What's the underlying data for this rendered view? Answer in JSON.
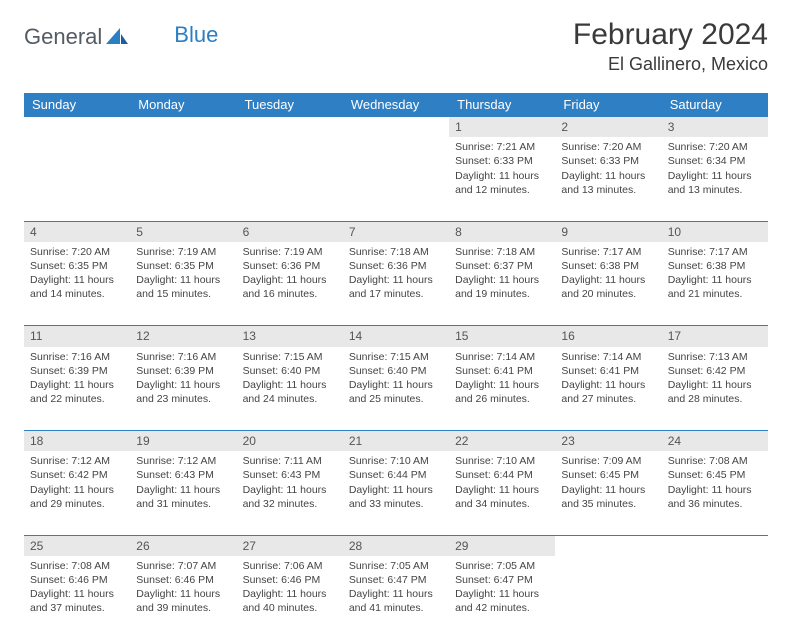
{
  "brand": {
    "part1": "General",
    "part2": "Blue"
  },
  "title": "February 2024",
  "location": "El Gallinero, Mexico",
  "colors": {
    "header_bg": "#2f7fc5",
    "header_text": "#ffffff",
    "daynum_bg": "#e8e8e8",
    "row_border": "#2f7fc5",
    "body_text": "#444444",
    "brand_gray": "#555b66",
    "brand_blue": "#2a7ec4",
    "page_bg": "#ffffff"
  },
  "typography": {
    "title_fontsize": 30,
    "location_fontsize": 18,
    "dayheader_fontsize": 13,
    "daynum_fontsize": 12,
    "cell_fontsize": 10.5
  },
  "day_headers": [
    "Sunday",
    "Monday",
    "Tuesday",
    "Wednesday",
    "Thursday",
    "Friday",
    "Saturday"
  ],
  "weeks": [
    {
      "nums": [
        "",
        "",
        "",
        "",
        "1",
        "2",
        "3"
      ],
      "cells": [
        null,
        null,
        null,
        null,
        {
          "sunrise": "Sunrise: 7:21 AM",
          "sunset": "Sunset: 6:33 PM",
          "day1": "Daylight: 11 hours",
          "day2": "and 12 minutes."
        },
        {
          "sunrise": "Sunrise: 7:20 AM",
          "sunset": "Sunset: 6:33 PM",
          "day1": "Daylight: 11 hours",
          "day2": "and 13 minutes."
        },
        {
          "sunrise": "Sunrise: 7:20 AM",
          "sunset": "Sunset: 6:34 PM",
          "day1": "Daylight: 11 hours",
          "day2": "and 13 minutes."
        }
      ]
    },
    {
      "nums": [
        "4",
        "5",
        "6",
        "7",
        "8",
        "9",
        "10"
      ],
      "cells": [
        {
          "sunrise": "Sunrise: 7:20 AM",
          "sunset": "Sunset: 6:35 PM",
          "day1": "Daylight: 11 hours",
          "day2": "and 14 minutes."
        },
        {
          "sunrise": "Sunrise: 7:19 AM",
          "sunset": "Sunset: 6:35 PM",
          "day1": "Daylight: 11 hours",
          "day2": "and 15 minutes."
        },
        {
          "sunrise": "Sunrise: 7:19 AM",
          "sunset": "Sunset: 6:36 PM",
          "day1": "Daylight: 11 hours",
          "day2": "and 16 minutes."
        },
        {
          "sunrise": "Sunrise: 7:18 AM",
          "sunset": "Sunset: 6:36 PM",
          "day1": "Daylight: 11 hours",
          "day2": "and 17 minutes."
        },
        {
          "sunrise": "Sunrise: 7:18 AM",
          "sunset": "Sunset: 6:37 PM",
          "day1": "Daylight: 11 hours",
          "day2": "and 19 minutes."
        },
        {
          "sunrise": "Sunrise: 7:17 AM",
          "sunset": "Sunset: 6:38 PM",
          "day1": "Daylight: 11 hours",
          "day2": "and 20 minutes."
        },
        {
          "sunrise": "Sunrise: 7:17 AM",
          "sunset": "Sunset: 6:38 PM",
          "day1": "Daylight: 11 hours",
          "day2": "and 21 minutes."
        }
      ]
    },
    {
      "nums": [
        "11",
        "12",
        "13",
        "14",
        "15",
        "16",
        "17"
      ],
      "cells": [
        {
          "sunrise": "Sunrise: 7:16 AM",
          "sunset": "Sunset: 6:39 PM",
          "day1": "Daylight: 11 hours",
          "day2": "and 22 minutes."
        },
        {
          "sunrise": "Sunrise: 7:16 AM",
          "sunset": "Sunset: 6:39 PM",
          "day1": "Daylight: 11 hours",
          "day2": "and 23 minutes."
        },
        {
          "sunrise": "Sunrise: 7:15 AM",
          "sunset": "Sunset: 6:40 PM",
          "day1": "Daylight: 11 hours",
          "day2": "and 24 minutes."
        },
        {
          "sunrise": "Sunrise: 7:15 AM",
          "sunset": "Sunset: 6:40 PM",
          "day1": "Daylight: 11 hours",
          "day2": "and 25 minutes."
        },
        {
          "sunrise": "Sunrise: 7:14 AM",
          "sunset": "Sunset: 6:41 PM",
          "day1": "Daylight: 11 hours",
          "day2": "and 26 minutes."
        },
        {
          "sunrise": "Sunrise: 7:14 AM",
          "sunset": "Sunset: 6:41 PM",
          "day1": "Daylight: 11 hours",
          "day2": "and 27 minutes."
        },
        {
          "sunrise": "Sunrise: 7:13 AM",
          "sunset": "Sunset: 6:42 PM",
          "day1": "Daylight: 11 hours",
          "day2": "and 28 minutes."
        }
      ]
    },
    {
      "nums": [
        "18",
        "19",
        "20",
        "21",
        "22",
        "23",
        "24"
      ],
      "cells": [
        {
          "sunrise": "Sunrise: 7:12 AM",
          "sunset": "Sunset: 6:42 PM",
          "day1": "Daylight: 11 hours",
          "day2": "and 29 minutes."
        },
        {
          "sunrise": "Sunrise: 7:12 AM",
          "sunset": "Sunset: 6:43 PM",
          "day1": "Daylight: 11 hours",
          "day2": "and 31 minutes."
        },
        {
          "sunrise": "Sunrise: 7:11 AM",
          "sunset": "Sunset: 6:43 PM",
          "day1": "Daylight: 11 hours",
          "day2": "and 32 minutes."
        },
        {
          "sunrise": "Sunrise: 7:10 AM",
          "sunset": "Sunset: 6:44 PM",
          "day1": "Daylight: 11 hours",
          "day2": "and 33 minutes."
        },
        {
          "sunrise": "Sunrise: 7:10 AM",
          "sunset": "Sunset: 6:44 PM",
          "day1": "Daylight: 11 hours",
          "day2": "and 34 minutes."
        },
        {
          "sunrise": "Sunrise: 7:09 AM",
          "sunset": "Sunset: 6:45 PM",
          "day1": "Daylight: 11 hours",
          "day2": "and 35 minutes."
        },
        {
          "sunrise": "Sunrise: 7:08 AM",
          "sunset": "Sunset: 6:45 PM",
          "day1": "Daylight: 11 hours",
          "day2": "and 36 minutes."
        }
      ]
    },
    {
      "nums": [
        "25",
        "26",
        "27",
        "28",
        "29",
        "",
        ""
      ],
      "cells": [
        {
          "sunrise": "Sunrise: 7:08 AM",
          "sunset": "Sunset: 6:46 PM",
          "day1": "Daylight: 11 hours",
          "day2": "and 37 minutes."
        },
        {
          "sunrise": "Sunrise: 7:07 AM",
          "sunset": "Sunset: 6:46 PM",
          "day1": "Daylight: 11 hours",
          "day2": "and 39 minutes."
        },
        {
          "sunrise": "Sunrise: 7:06 AM",
          "sunset": "Sunset: 6:46 PM",
          "day1": "Daylight: 11 hours",
          "day2": "and 40 minutes."
        },
        {
          "sunrise": "Sunrise: 7:05 AM",
          "sunset": "Sunset: 6:47 PM",
          "day1": "Daylight: 11 hours",
          "day2": "and 41 minutes."
        },
        {
          "sunrise": "Sunrise: 7:05 AM",
          "sunset": "Sunset: 6:47 PM",
          "day1": "Daylight: 11 hours",
          "day2": "and 42 minutes."
        },
        null,
        null
      ]
    }
  ]
}
